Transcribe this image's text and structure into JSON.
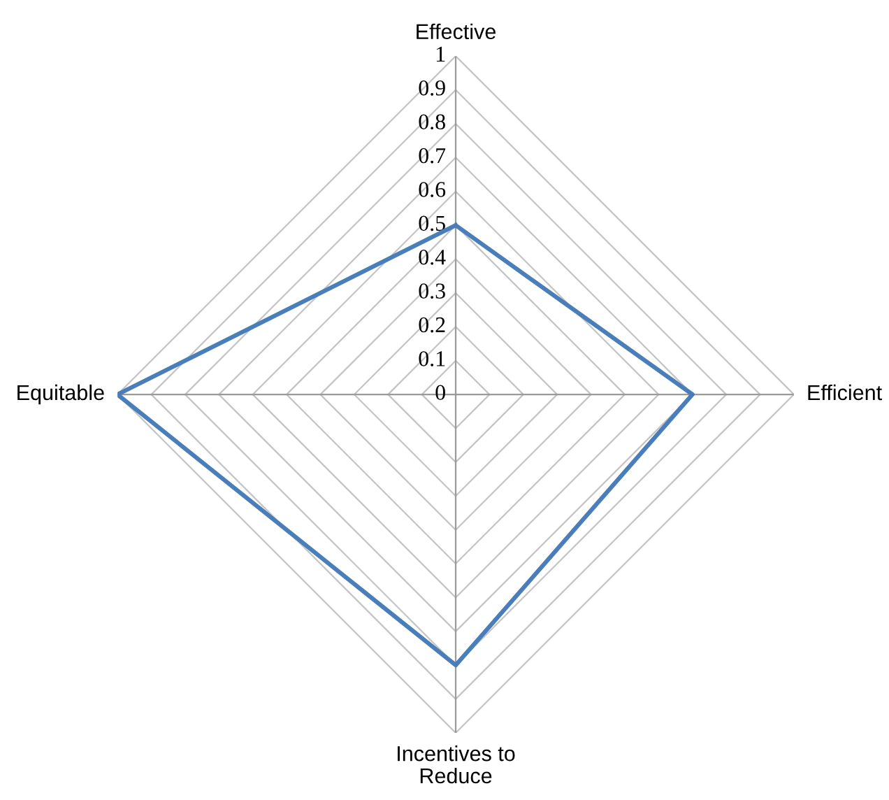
{
  "chart_data": {
    "type": "radar",
    "categories": [
      "Effective",
      "Efficient",
      "Incentives to Reduce",
      "Equitable"
    ],
    "series": [
      {
        "color": "#4a7ebb",
        "values": [
          0.5,
          0.7,
          0.8,
          1
        ]
      }
    ],
    "ylim": [
      0,
      1
    ],
    "yticks": [
      0,
      0.1,
      0.2,
      0.3,
      0.4,
      0.5,
      0.6,
      0.7,
      0.8,
      0.9,
      1
    ],
    "grid": true
  }
}
